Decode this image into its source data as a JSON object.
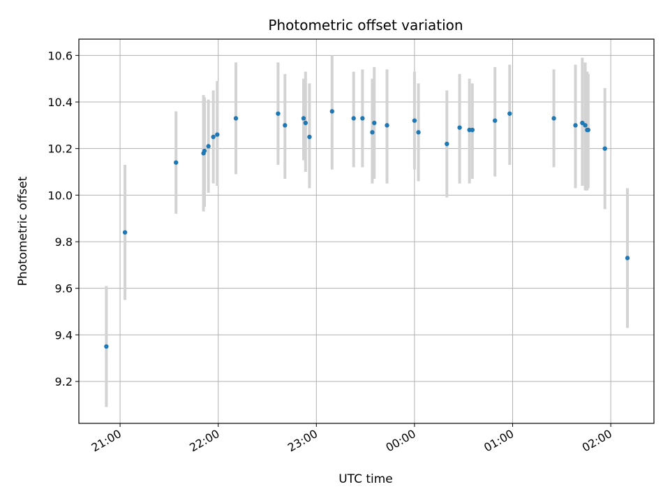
{
  "chart_data": {
    "type": "scatter",
    "title": "Photometric offset variation",
    "xlabel": "UTC time",
    "ylabel": "Photometric offset",
    "x_unit": "UTC time (hours, continuing past midnight)",
    "xlim": [
      20.58,
      26.44
    ],
    "ylim": [
      9.02,
      10.67
    ],
    "grid": true,
    "x_tick_values": [
      21,
      22,
      23,
      24,
      25,
      26
    ],
    "x_tick_labels": [
      "21:00",
      "22:00",
      "23:00",
      "00:00",
      "01:00",
      "02:00"
    ],
    "y_tick_values": [
      9.2,
      9.4,
      9.6,
      9.8,
      10.0,
      10.2,
      10.4,
      10.6
    ],
    "y_tick_labels": [
      "9.2",
      "9.4",
      "9.6",
      "9.8",
      "10.0",
      "10.2",
      "10.4",
      "10.6"
    ],
    "colors": {
      "marker": "#1f77b4",
      "errorbar": "#d3d3d3",
      "grid": "#b0b0b0",
      "axes": "#000000"
    },
    "series": [
      {
        "x": [
          20.86,
          21.05,
          21.57,
          21.85,
          21.86,
          21.9,
          21.95,
          21.99,
          22.18,
          22.61,
          22.68,
          22.87,
          22.89,
          22.93,
          23.16,
          23.38,
          23.47,
          23.57,
          23.59,
          23.72,
          24.0,
          24.04,
          24.33,
          24.46,
          24.56,
          24.59,
          24.82,
          24.97,
          25.42,
          25.64,
          25.71,
          25.74,
          25.76,
          25.77,
          25.94,
          26.17
        ],
        "y": [
          9.35,
          9.84,
          10.14,
          10.18,
          10.19,
          10.21,
          10.25,
          10.26,
          10.33,
          10.35,
          10.3,
          10.33,
          10.31,
          10.25,
          10.36,
          10.33,
          10.33,
          10.27,
          10.31,
          10.3,
          10.32,
          10.27,
          10.22,
          10.29,
          10.28,
          10.28,
          10.32,
          10.35,
          10.33,
          10.3,
          10.31,
          10.3,
          10.28,
          10.28,
          10.2,
          9.73
        ],
        "ylow": [
          9.09,
          9.55,
          9.92,
          9.93,
          9.95,
          10.01,
          10.05,
          10.04,
          10.09,
          10.13,
          10.07,
          10.15,
          10.1,
          10.03,
          10.11,
          10.12,
          10.12,
          10.05,
          10.07,
          10.05,
          10.11,
          10.06,
          9.99,
          10.05,
          10.05,
          10.07,
          10.08,
          10.13,
          10.12,
          10.03,
          10.04,
          10.02,
          10.02,
          10.03,
          9.94,
          9.43
        ],
        "yhigh": [
          9.61,
          10.13,
          10.36,
          10.43,
          10.42,
          10.41,
          10.45,
          10.49,
          10.57,
          10.57,
          10.52,
          10.5,
          10.53,
          10.48,
          10.6,
          10.53,
          10.54,
          10.5,
          10.55,
          10.54,
          10.53,
          10.48,
          10.45,
          10.52,
          10.5,
          10.48,
          10.55,
          10.56,
          10.54,
          10.56,
          10.59,
          10.57,
          10.53,
          10.52,
          10.46,
          10.03
        ]
      }
    ]
  }
}
